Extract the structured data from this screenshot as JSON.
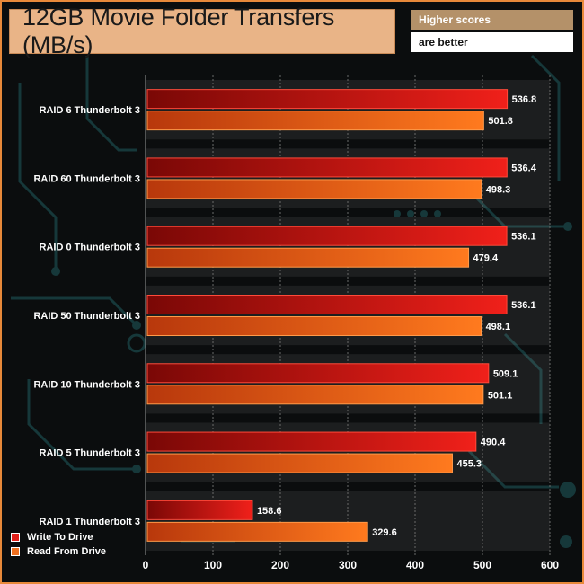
{
  "title": "12GB Movie Folder Transfers (MB/s)",
  "note": {
    "line1": "Higher scores",
    "line2": "are better"
  },
  "legend": [
    {
      "label": "Write To Drive",
      "color": "#e0201a"
    },
    {
      "label": "Read From Drive",
      "color": "#f07020"
    }
  ],
  "chart_data": {
    "type": "bar",
    "orientation": "horizontal",
    "categories": [
      "RAID 6 Thunderbolt 3",
      "RAID 60 Thunderbolt 3",
      "RAID 0 Thunderbolt 3",
      "RAID 50 Thunderbolt 3",
      "RAID 10 Thunderbolt 3",
      "RAID 5 Thunderbolt 3",
      "RAID 1 Thunderbolt 3"
    ],
    "series": [
      {
        "name": "Write To Drive",
        "values": [
          536.8,
          536.4,
          536.1,
          536.1,
          509.1,
          490.4,
          158.6
        ]
      },
      {
        "name": "Read From Drive",
        "values": [
          501.8,
          498.3,
          479.4,
          498.1,
          501.1,
          455.3,
          329.6
        ]
      }
    ],
    "data_labels": [
      [
        "536.8",
        "536.4",
        "536.1",
        "536.1",
        "509.1",
        "490.4",
        "158.6"
      ],
      [
        "501.8",
        "498.3",
        "479.4",
        "498.1",
        "501.1",
        "455.3",
        "329.6"
      ]
    ],
    "xticks": [
      "0",
      "100",
      "200",
      "300",
      "400",
      "500",
      "600"
    ],
    "xlim": [
      0,
      600
    ],
    "legend_position": "bottom-left"
  }
}
